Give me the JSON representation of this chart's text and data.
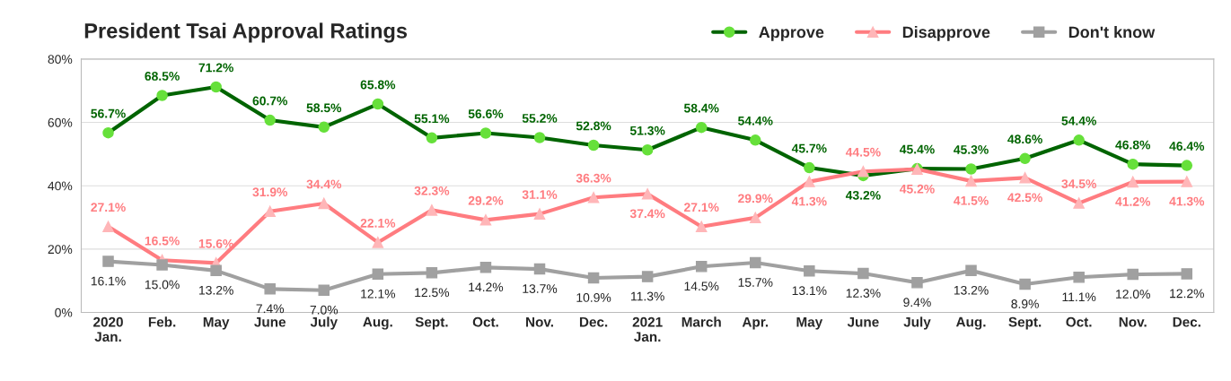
{
  "chart_data": {
    "type": "line",
    "title": "President Tsai Approval Ratings",
    "categories": [
      "2020\nJan.",
      "Feb.",
      "May",
      "June",
      "July",
      "Aug.",
      "Sept.",
      "Oct.",
      "Nov.",
      "Dec.",
      "2021\nJan.",
      "March",
      "Apr.",
      "May",
      "June",
      "July",
      "Aug.",
      "Sept.",
      "Oct.",
      "Nov.",
      "Dec."
    ],
    "series": [
      {
        "name": "Approve",
        "color": "#006400",
        "marker": "circle",
        "values": [
          56.7,
          68.5,
          71.2,
          60.7,
          58.5,
          65.8,
          55.1,
          56.6,
          55.2,
          52.8,
          51.3,
          58.4,
          54.4,
          45.7,
          43.2,
          45.4,
          45.3,
          48.6,
          54.4,
          46.8,
          46.4
        ],
        "value_labels": [
          "56.7%",
          "68.5%",
          "71.2%",
          "60.7%",
          "58.5%",
          "65.8%",
          "55.1%",
          "56.6%",
          "55.2%",
          "52.8%",
          "51.3%",
          "58.4%",
          "54.4%",
          "45.7%",
          "43.2%",
          "45.4%",
          "45.3%",
          "48.6%",
          "54.4%",
          "46.8%",
          "46.4%"
        ]
      },
      {
        "name": "Disapprove",
        "color": "#ff7c80",
        "marker": "triangle",
        "values": [
          27.1,
          16.5,
          15.6,
          31.9,
          34.4,
          22.1,
          32.3,
          29.2,
          31.1,
          36.3,
          37.4,
          27.1,
          29.9,
          41.3,
          44.5,
          45.2,
          41.5,
          42.5,
          34.5,
          41.2,
          41.3
        ],
        "value_labels": [
          "27.1%",
          "16.5%",
          "15.6%",
          "31.9%",
          "34.4%",
          "22.1%",
          "32.3%",
          "29.2%",
          "31.1%",
          "36.3%",
          "37.4%",
          "27.1%",
          "29.9%",
          "41.3%",
          "44.5%",
          "45.2%",
          "41.5%",
          "42.5%",
          "34.5%",
          "41.2%",
          "41.3%"
        ]
      },
      {
        "name": "Don't know",
        "color": "#a0a0a0",
        "marker": "square",
        "values": [
          16.1,
          15.0,
          13.2,
          7.4,
          7.0,
          12.1,
          12.5,
          14.2,
          13.7,
          10.9,
          11.3,
          14.5,
          15.7,
          13.1,
          12.3,
          9.4,
          13.2,
          8.9,
          11.1,
          12.0,
          12.2
        ],
        "value_labels": [
          "16.1%",
          "15.0%",
          "13.2%",
          "7.4%",
          "7.0%",
          "12.1%",
          "12.5%",
          "14.2%",
          "13.7%",
          "10.9%",
          "11.3%",
          "14.5%",
          "15.7%",
          "13.1%",
          "12.3%",
          "9.4%",
          "13.2%",
          "8.9%",
          "11.1%",
          "12.0%",
          "12.2%"
        ]
      }
    ],
    "ylim": [
      0,
      80
    ],
    "yticks": [
      {
        "value": 0,
        "label": "0%"
      },
      {
        "value": 20,
        "label": "20%"
      },
      {
        "value": 40,
        "label": "40%"
      },
      {
        "value": 60,
        "label": "60%"
      },
      {
        "value": 80,
        "label": "80%"
      }
    ],
    "grid": "y",
    "legend": "top right",
    "line_style": "solid"
  }
}
